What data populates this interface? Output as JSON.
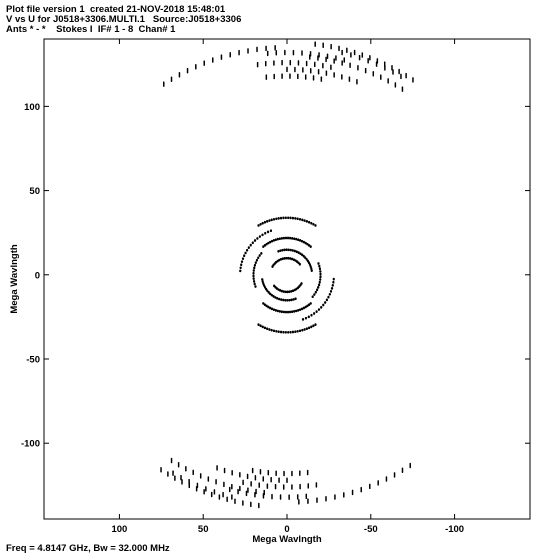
{
  "header": {
    "line1": "Plot file version 1  created 21-NOV-2018 15:48:01",
    "line2": "V vs U for J0518+3306.MULTI.1   Source:J0518+3306",
    "line3": "Ants * - *    Stokes I  IF# 1 - 8  Chan# 1"
  },
  "footer": "Freq = 4.8147 GHz, Bw = 32.000 MHz",
  "chart_data": {
    "type": "scatter",
    "xlabel": "Mega Wavlngth",
    "ylabel": "Mega Wavlngth",
    "xlim": [
      145,
      -145
    ],
    "ylim": [
      -145,
      140
    ],
    "x_ticks": [
      100,
      50,
      0,
      -50,
      -100
    ],
    "y_ticks": [
      100,
      50,
      0,
      -50,
      -100
    ],
    "x_tick_labels": [
      "100",
      "50",
      "0",
      "-50",
      "-100"
    ],
    "y_tick_labels": [
      "100",
      "50",
      "0",
      "-50",
      "-100"
    ],
    "tracks": [
      {
        "r": 135,
        "a0": 93,
        "a1": 123,
        "n": 14
      },
      {
        "r": 126,
        "a0": 78,
        "a1": 98,
        "n": 10
      },
      {
        "r": 132,
        "a0": 75,
        "a1": 95,
        "n": 10
      },
      {
        "r": 138,
        "a0": 57,
        "a1": 83,
        "n": 14
      },
      {
        "r": 130,
        "a0": 58,
        "a1": 84,
        "n": 13
      },
      {
        "r": 118,
        "a0": 80,
        "a1": 96,
        "n": 8
      },
      {
        "r": 122,
        "a0": 70,
        "a1": 90,
        "n": 10
      },
      {
        "r": 136,
        "a0": 60,
        "a1": 76,
        "n": 8
      },
      {
        "r": 34,
        "a0": 60,
        "a1": 120,
        "n": 26
      },
      {
        "r": 22,
        "a0": 50,
        "a1": 130,
        "n": 26
      },
      {
        "r": 15,
        "a0": 10,
        "a1": 110,
        "n": 22
      },
      {
        "r": 10,
        "a0": 40,
        "a1": 150,
        "n": 18
      },
      {
        "r": 28,
        "a0": 110,
        "a1": 175,
        "n": 18
      },
      {
        "r": 20,
        "a0": 140,
        "a1": 200,
        "n": 14
      }
    ]
  }
}
